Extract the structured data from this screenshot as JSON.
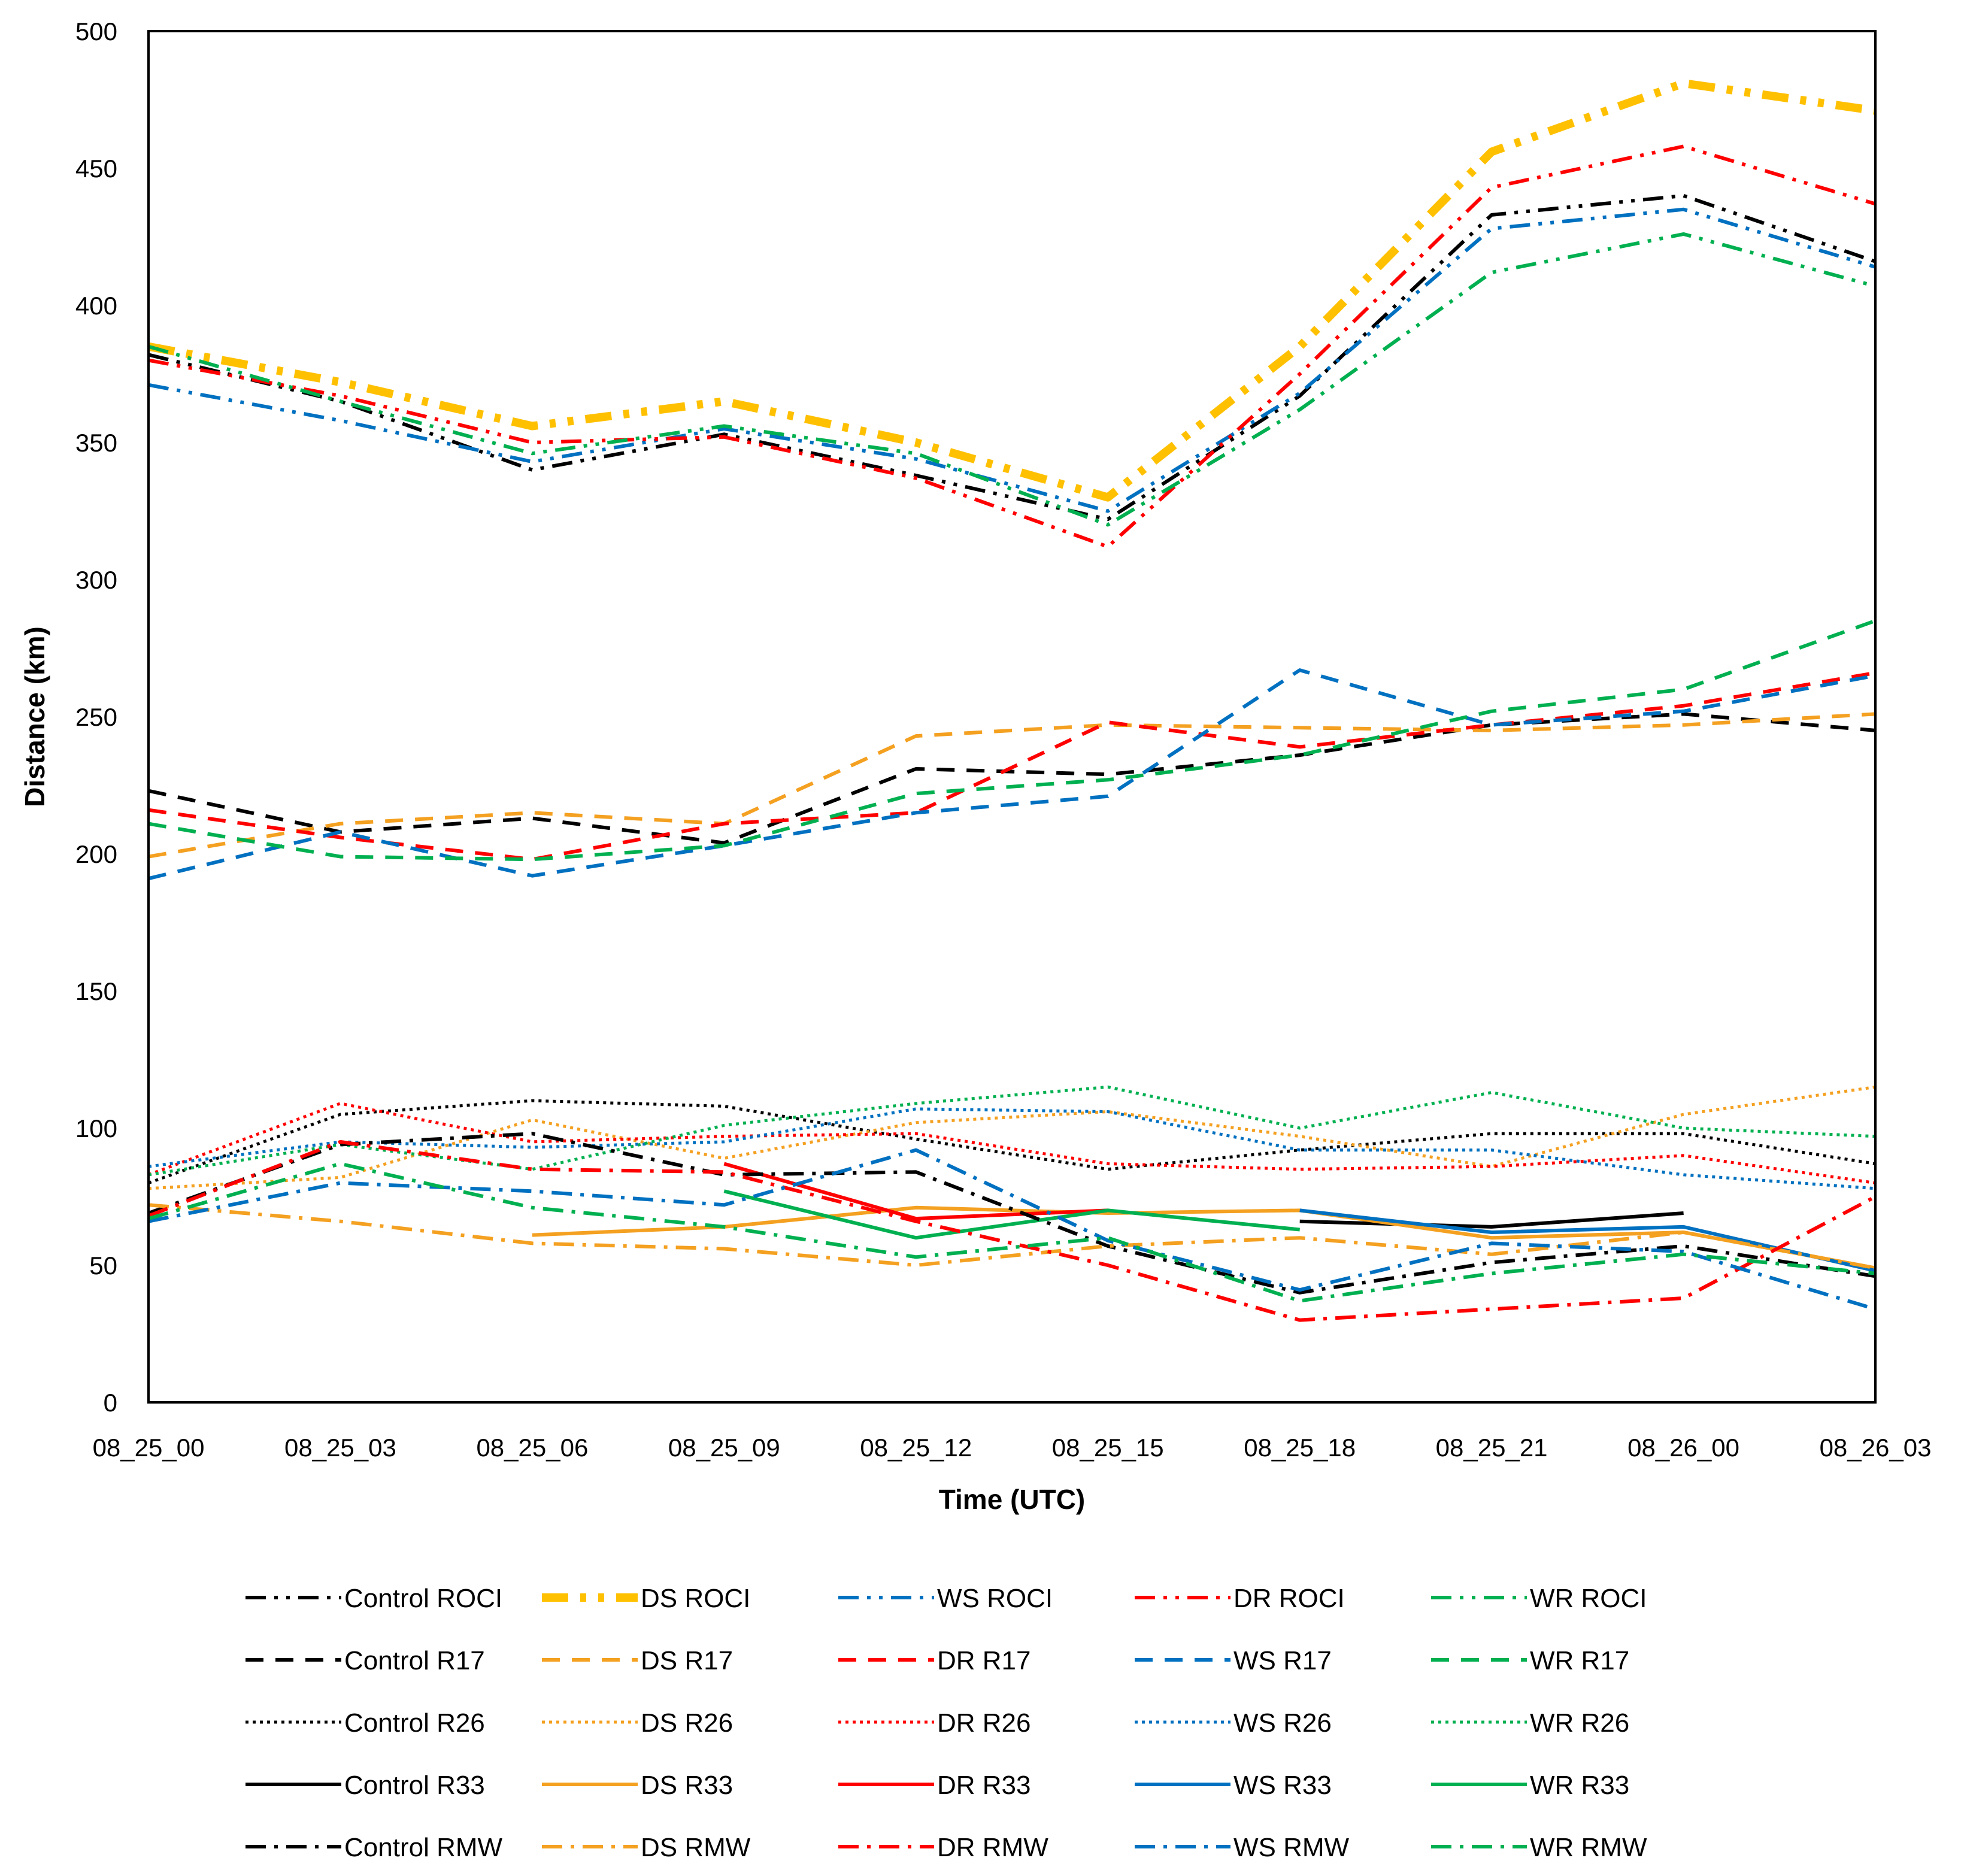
{
  "chart_data": {
    "type": "line",
    "title": "",
    "xlabel": "Time (UTC)",
    "ylabel": "Distance (km)",
    "ylim": [
      0,
      500
    ],
    "yticks": [
      0,
      50,
      100,
      150,
      200,
      250,
      300,
      350,
      400,
      450,
      500
    ],
    "categories": [
      "08_25_00",
      "08_25_03",
      "08_25_06",
      "08_25_09",
      "08_25_12",
      "08_25_15",
      "08_25_18",
      "08_25_21",
      "08_26_00",
      "08_26_03"
    ],
    "grid": false,
    "legend_position": "bottom",
    "series": [
      {
        "name": "Control ROCI",
        "color": "#000000",
        "style": "dashdotdot",
        "values": [
          382,
          365,
          340,
          353,
          338,
          322,
          367,
          433,
          440,
          416
        ]
      },
      {
        "name": "DS ROCI",
        "color": "#FFC000",
        "style": "dashdotdot-bold",
        "values": [
          385,
          372,
          356,
          365,
          350,
          330,
          385,
          456,
          481,
          471
        ]
      },
      {
        "name": "WS ROCI",
        "color": "#0070C0",
        "style": "dashdotdot",
        "values": [
          371,
          358,
          343,
          355,
          344,
          325,
          368,
          428,
          435,
          414
        ]
      },
      {
        "name": "DR ROCI",
        "color": "#FF0000",
        "style": "dashdotdot",
        "values": [
          380,
          367,
          350,
          352,
          337,
          312,
          375,
          443,
          458,
          437
        ]
      },
      {
        "name": "WR ROCI",
        "color": "#00B050",
        "style": "dashdotdot",
        "values": [
          385,
          365,
          346,
          356,
          346,
          320,
          362,
          412,
          426,
          407
        ]
      },
      {
        "name": "Control R17",
        "color": "#000000",
        "style": "dash",
        "values": [
          223,
          208,
          213,
          204,
          231,
          229,
          236,
          247,
          251,
          245
        ]
      },
      {
        "name": "DS R17",
        "color": "#F4A020",
        "style": "dash",
        "values": [
          199,
          211,
          215,
          211,
          243,
          247,
          246,
          245,
          247,
          251
        ]
      },
      {
        "name": "DR R17",
        "color": "#FF0000",
        "style": "dash",
        "values": [
          216,
          206,
          198,
          211,
          215,
          248,
          239,
          247,
          254,
          266
        ]
      },
      {
        "name": "WS R17",
        "color": "#0070C0",
        "style": "dash",
        "values": [
          191,
          208,
          192,
          203,
          215,
          221,
          267,
          247,
          252,
          265
        ]
      },
      {
        "name": "WR R17",
        "color": "#00B050",
        "style": "dash",
        "values": [
          211,
          199,
          198,
          203,
          222,
          227,
          236,
          252,
          260,
          285
        ]
      },
      {
        "name": "Control R26",
        "color": "#000000",
        "style": "dot",
        "values": [
          80,
          105,
          110,
          108,
          96,
          85,
          92,
          98,
          98,
          87
        ]
      },
      {
        "name": "DS R26",
        "color": "#F4A020",
        "style": "dot",
        "values": [
          78,
          82,
          103,
          89,
          102,
          106,
          97,
          86,
          105,
          115
        ]
      },
      {
        "name": "DR R26",
        "color": "#FF0000",
        "style": "dot",
        "values": [
          83,
          109,
          95,
          97,
          98,
          87,
          85,
          86,
          90,
          80
        ]
      },
      {
        "name": "WS R26",
        "color": "#0070C0",
        "style": "dot",
        "values": [
          86,
          95,
          93,
          95,
          107,
          106,
          92,
          92,
          83,
          78
        ]
      },
      {
        "name": "WR R26",
        "color": "#00B050",
        "style": "dot",
        "values": [
          83,
          94,
          85,
          101,
          109,
          115,
          100,
          113,
          100,
          97
        ]
      },
      {
        "name": "Control R33",
        "color": "#000000",
        "style": "solid",
        "values": [
          null,
          null,
          null,
          null,
          null,
          null,
          66,
          64,
          69,
          null
        ]
      },
      {
        "name": "DS R33",
        "color": "#F4A020",
        "style": "solid",
        "values": [
          null,
          null,
          61,
          64,
          71,
          69,
          70,
          60,
          62,
          49
        ]
      },
      {
        "name": "DR R33",
        "color": "#FF0000",
        "style": "solid",
        "values": [
          null,
          null,
          null,
          87,
          67,
          70,
          null,
          null,
          null,
          null
        ]
      },
      {
        "name": "WS R33",
        "color": "#0070C0",
        "style": "solid",
        "values": [
          null,
          null,
          null,
          null,
          null,
          null,
          70,
          62,
          64,
          48
        ]
      },
      {
        "name": "WR R33",
        "color": "#00B050",
        "style": "solid",
        "values": [
          null,
          null,
          null,
          77,
          60,
          70,
          63,
          null,
          null,
          null
        ]
      },
      {
        "name": "Control RMW",
        "color": "#000000",
        "style": "dashdot",
        "values": [
          69,
          94,
          98,
          83,
          84,
          57,
          40,
          51,
          57,
          46
        ]
      },
      {
        "name": "DS RMW",
        "color": "#F4A020",
        "style": "dashdot",
        "values": [
          72,
          66,
          58,
          56,
          50,
          57,
          60,
          54,
          62,
          49
        ]
      },
      {
        "name": "DR RMW",
        "color": "#FF0000",
        "style": "dashdot",
        "values": [
          68,
          95,
          85,
          84,
          66,
          50,
          30,
          34,
          38,
          75
        ]
      },
      {
        "name": "WS RMW",
        "color": "#0070C0",
        "style": "dashdot",
        "values": [
          66,
          80,
          77,
          72,
          92,
          59,
          41,
          58,
          55,
          34
        ]
      },
      {
        "name": "WR RMW",
        "color": "#00B050",
        "style": "dashdot",
        "values": [
          67,
          87,
          71,
          64,
          53,
          60,
          37,
          47,
          54,
          47
        ]
      }
    ]
  }
}
